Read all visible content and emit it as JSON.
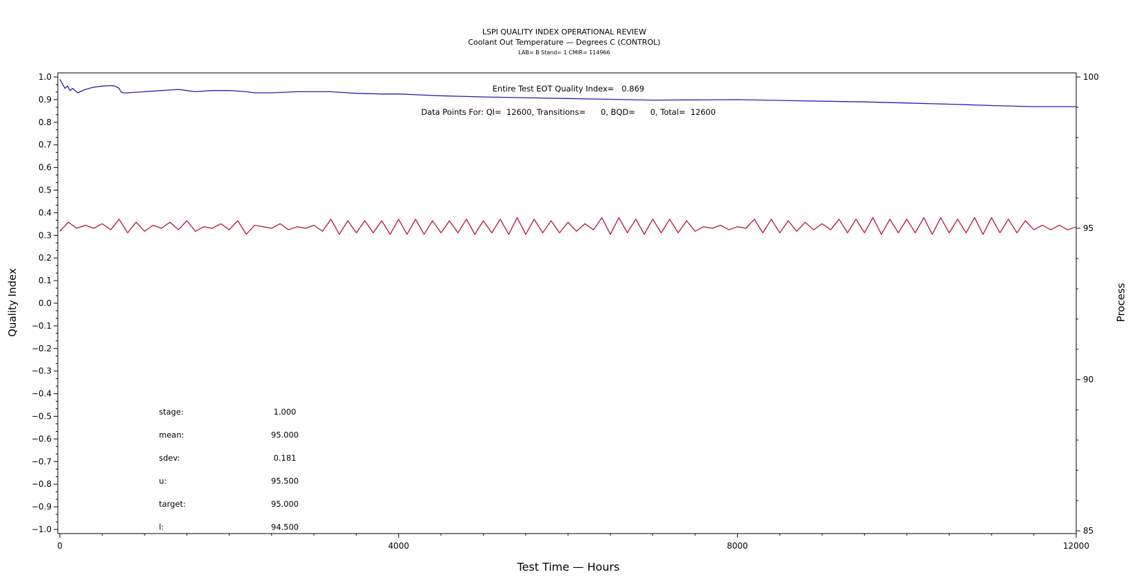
{
  "chart_data": {
    "type": "line",
    "title": "LSPI QUALITY INDEX OPERATIONAL REVIEW",
    "subtitle": "Coolant Out Temperature — Degrees C (CONTROL)",
    "subtitle2": "LAB= B Stand= 1 CMIR= 114966",
    "xlabel": "Test Time — Hours",
    "ylabel_left": "Quality Index",
    "ylabel_right": "Process",
    "xlim": [
      0,
      12000
    ],
    "ylim_left": [
      -1.0,
      1.0
    ],
    "ylim_right": [
      85,
      100
    ],
    "x_ticks": [
      "0",
      "4000",
      "8000",
      "12000"
    ],
    "y_left_ticks": [
      "−1.0",
      "−0.9",
      "−0.8",
      "−0.7",
      "−0.6",
      "−0.5",
      "−0.4",
      "−0.3",
      "−0.2",
      "−0.1",
      "0.0",
      "0.1",
      "0.2",
      "0.3",
      "0.4",
      "0.5",
      "0.6",
      "0.7",
      "0.8",
      "0.9",
      "1.0"
    ],
    "y_right_ticks": [
      "85",
      "90",
      "95",
      "100"
    ],
    "grid": false,
    "annotations": {
      "quality_index": "Entire Test EOT Quality Index=   0.869",
      "data_points": "Data Points For: QI=  12600, Transitions=      0, BQD=      0, Total=  12600"
    },
    "stats": [
      {
        "label": "stage:",
        "value": "1.000"
      },
      {
        "label": "mean:",
        "value": "95.000"
      },
      {
        "label": "sdev:",
        "value": "0.181"
      },
      {
        "label": "u:",
        "value": "95.500"
      },
      {
        "label": "target:",
        "value": "95.000"
      },
      {
        "label": "l:",
        "value": "94.500"
      }
    ],
    "series": [
      {
        "axis": "left",
        "color": "#1f1fb4",
        "x": [
          0,
          30,
          60,
          90,
          120,
          150,
          180,
          210,
          240,
          300,
          400,
          500,
          600,
          650,
          700,
          720,
          750,
          800,
          1000,
          1200,
          1400,
          1500,
          1600,
          1800,
          2000,
          2100,
          2200,
          2300,
          2500,
          2800,
          3000,
          3200,
          3400,
          3500,
          3800,
          4000,
          4500,
          5000,
          6000,
          7000,
          8000,
          9000,
          9500,
          10000,
          10500,
          11000,
          11500,
          12000
        ],
        "y": [
          0.99,
          0.97,
          0.95,
          0.96,
          0.94,
          0.95,
          0.94,
          0.93,
          0.935,
          0.945,
          0.955,
          0.96,
          0.962,
          0.96,
          0.95,
          0.935,
          0.93,
          0.93,
          0.935,
          0.94,
          0.945,
          0.94,
          0.935,
          0.94,
          0.94,
          0.938,
          0.935,
          0.93,
          0.93,
          0.935,
          0.935,
          0.935,
          0.93,
          0.928,
          0.925,
          0.925,
          0.917,
          0.912,
          0.905,
          0.898,
          0.9,
          0.893,
          0.89,
          0.885,
          0.88,
          0.874,
          0.869,
          0.869
        ]
      },
      {
        "axis": "right",
        "color": "#b3142f",
        "x": [
          0,
          100,
          200,
          300,
          400,
          500,
          600,
          700,
          800,
          900,
          1000,
          1100,
          1200,
          1300,
          1400,
          1500,
          1600,
          1700,
          1800,
          1900,
          2000,
          2100,
          2200,
          2300,
          2400,
          2500,
          2600,
          2700,
          2800,
          2900,
          3000,
          3100,
          3200,
          3300,
          3400,
          3500,
          3600,
          3700,
          3800,
          3900,
          4000,
          4100,
          4200,
          4300,
          4400,
          4500,
          4600,
          4700,
          4800,
          4900,
          5000,
          5100,
          5200,
          5300,
          5400,
          5500,
          5600,
          5700,
          5800,
          5900,
          6000,
          6100,
          6200,
          6300,
          6400,
          6500,
          6600,
          6700,
          6800,
          6900,
          7000,
          7100,
          7200,
          7300,
          7400,
          7500,
          7600,
          7700,
          7800,
          7900,
          8000,
          8100,
          8200,
          8300,
          8400,
          8500,
          8600,
          8700,
          8800,
          8900,
          9000,
          9100,
          9200,
          9300,
          9400,
          9500,
          9600,
          9700,
          9800,
          9900,
          10000,
          10100,
          10200,
          10300,
          10400,
          10500,
          10600,
          10700,
          10800,
          10900,
          11000,
          11100,
          11200,
          11300,
          11400,
          11500,
          11600,
          11700,
          11800,
          11900,
          12000
        ],
        "y": [
          94.9,
          95.2,
          95.0,
          95.1,
          95.0,
          95.15,
          94.95,
          95.3,
          94.85,
          95.2,
          94.9,
          95.1,
          95.0,
          95.2,
          94.95,
          95.25,
          94.9,
          95.05,
          95.0,
          95.15,
          94.95,
          95.25,
          94.8,
          95.1,
          95.05,
          95.0,
          95.15,
          94.95,
          95.05,
          95.0,
          95.1,
          94.9,
          95.3,
          94.8,
          95.25,
          94.85,
          95.25,
          94.85,
          95.25,
          94.8,
          95.3,
          94.8,
          95.3,
          94.8,
          95.25,
          94.85,
          95.25,
          94.85,
          95.3,
          94.8,
          95.25,
          94.85,
          95.3,
          94.8,
          95.35,
          94.8,
          95.3,
          94.85,
          95.25,
          94.85,
          95.2,
          94.9,
          95.15,
          94.95,
          95.35,
          94.8,
          95.35,
          94.85,
          95.3,
          94.8,
          95.3,
          94.85,
          95.3,
          94.85,
          95.25,
          94.9,
          95.05,
          95.0,
          95.1,
          94.95,
          95.05,
          95.0,
          95.3,
          94.85,
          95.3,
          94.85,
          95.25,
          94.9,
          95.2,
          94.95,
          95.15,
          94.95,
          95.3,
          94.85,
          95.3,
          94.85,
          95.35,
          94.8,
          95.3,
          94.85,
          95.3,
          94.85,
          95.35,
          94.8,
          95.35,
          94.85,
          95.3,
          94.85,
          95.35,
          94.8,
          95.35,
          94.85,
          95.3,
          94.85,
          95.25,
          94.95,
          95.1,
          94.95,
          95.1,
          94.95,
          95.05
        ]
      }
    ]
  }
}
